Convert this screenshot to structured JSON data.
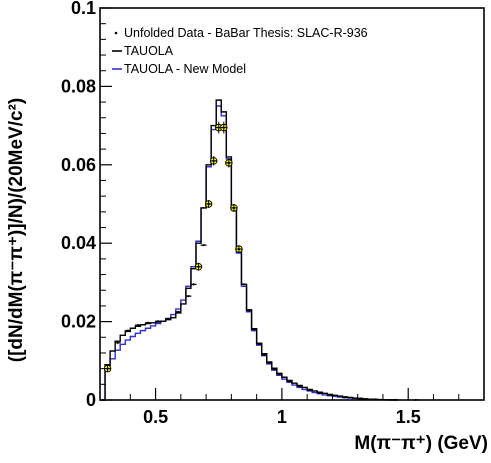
{
  "chart_data": {
    "type": "line",
    "xlabel": "M(π⁻π⁺) (GeV)",
    "ylabel": "([dN/dM(π⁻π⁺)]/N)/(20MeV/c²)",
    "xlim": [
      0.28,
      1.8
    ],
    "ylim": [
      0,
      0.1
    ],
    "x_ticks": [
      0.5,
      1,
      1.5
    ],
    "x_tick_labels": [
      "0.5",
      "1",
      "1.5"
    ],
    "y_ticks": [
      0,
      0.02,
      0.04,
      0.06,
      0.08,
      0.1
    ],
    "y_tick_labels": [
      "0",
      "0.02",
      "0.04",
      "0.06",
      "0.08",
      "0.1"
    ],
    "grid": false,
    "legend": "top-left",
    "legend_entries": [
      "Unfolded Data - BaBar Thesis: SLAC-R-936",
      "TAUOLA",
      "TAUOLA - New Model"
    ],
    "bin_width": 0.02,
    "series": [
      {
        "name": "TAUOLA",
        "color": "#000000",
        "style": "histogram",
        "bins": [
          [
            0.28,
            0.0
          ],
          [
            0.3,
            0.009
          ],
          [
            0.32,
            0.0125
          ],
          [
            0.34,
            0.015
          ],
          [
            0.36,
            0.0165
          ],
          [
            0.38,
            0.0175
          ],
          [
            0.4,
            0.0183
          ],
          [
            0.42,
            0.0188
          ],
          [
            0.44,
            0.0192
          ],
          [
            0.46,
            0.0195
          ],
          [
            0.48,
            0.0197
          ],
          [
            0.5,
            0.0199
          ],
          [
            0.52,
            0.0201
          ],
          [
            0.54,
            0.0205
          ],
          [
            0.56,
            0.021
          ],
          [
            0.58,
            0.0222
          ],
          [
            0.6,
            0.0245
          ],
          [
            0.62,
            0.0285
          ],
          [
            0.64,
            0.0335
          ],
          [
            0.66,
            0.04
          ],
          [
            0.68,
            0.049
          ],
          [
            0.7,
            0.06
          ],
          [
            0.72,
            0.07
          ],
          [
            0.74,
            0.0765
          ],
          [
            0.76,
            0.0735
          ],
          [
            0.78,
            0.062
          ],
          [
            0.8,
            0.049
          ],
          [
            0.82,
            0.038
          ],
          [
            0.84,
            0.0295
          ],
          [
            0.86,
            0.023
          ],
          [
            0.88,
            0.0182
          ],
          [
            0.9,
            0.0145
          ],
          [
            0.92,
            0.0118
          ],
          [
            0.94,
            0.0097
          ],
          [
            0.96,
            0.0081
          ],
          [
            0.98,
            0.0068
          ],
          [
            1.0,
            0.0058
          ],
          [
            1.02,
            0.005
          ],
          [
            1.04,
            0.0043
          ],
          [
            1.06,
            0.0037
          ],
          [
            1.08,
            0.0032
          ],
          [
            1.1,
            0.0027
          ],
          [
            1.12,
            0.0023
          ],
          [
            1.14,
            0.002
          ],
          [
            1.16,
            0.0017
          ],
          [
            1.18,
            0.0014
          ],
          [
            1.2,
            0.0012
          ],
          [
            1.22,
            0.001
          ],
          [
            1.24,
            0.0008
          ],
          [
            1.26,
            0.00065
          ],
          [
            1.28,
            0.0005
          ],
          [
            1.3,
            0.0004
          ],
          [
            1.32,
            0.0003
          ],
          [
            1.34,
            0.00022
          ],
          [
            1.36,
            0.00015
          ],
          [
            1.38,
            0.0001
          ],
          [
            1.4,
            6e-05
          ],
          [
            1.42,
            3e-05
          ],
          [
            1.44,
            0.0
          ]
        ]
      },
      {
        "name": "TAUOLA - New Model",
        "color": "#3030d0",
        "style": "histogram",
        "bins": [
          [
            0.28,
            0.0
          ],
          [
            0.3,
            0.0075
          ],
          [
            0.32,
            0.0105
          ],
          [
            0.34,
            0.0127
          ],
          [
            0.36,
            0.0142
          ],
          [
            0.38,
            0.0153
          ],
          [
            0.4,
            0.0162
          ],
          [
            0.42,
            0.017
          ],
          [
            0.44,
            0.0177
          ],
          [
            0.46,
            0.0183
          ],
          [
            0.48,
            0.0189
          ],
          [
            0.5,
            0.0195
          ],
          [
            0.52,
            0.0201
          ],
          [
            0.54,
            0.0208
          ],
          [
            0.56,
            0.0218
          ],
          [
            0.58,
            0.0232
          ],
          [
            0.6,
            0.0255
          ],
          [
            0.62,
            0.029
          ],
          [
            0.64,
            0.034
          ],
          [
            0.66,
            0.0405
          ],
          [
            0.68,
            0.049
          ],
          [
            0.7,
            0.0595
          ],
          [
            0.72,
            0.069
          ],
          [
            0.74,
            0.075
          ],
          [
            0.76,
            0.0725
          ],
          [
            0.78,
            0.0615
          ],
          [
            0.8,
            0.0485
          ],
          [
            0.82,
            0.0375
          ],
          [
            0.84,
            0.029
          ],
          [
            0.86,
            0.0225
          ],
          [
            0.88,
            0.0177
          ],
          [
            0.9,
            0.014
          ],
          [
            0.92,
            0.0113
          ],
          [
            0.94,
            0.0092
          ],
          [
            0.96,
            0.0076
          ],
          [
            0.98,
            0.0063
          ],
          [
            1.0,
            0.0053
          ],
          [
            1.02,
            0.0045
          ],
          [
            1.04,
            0.0038
          ],
          [
            1.06,
            0.0032
          ],
          [
            1.08,
            0.0027
          ],
          [
            1.1,
            0.0023
          ],
          [
            1.12,
            0.0019
          ],
          [
            1.14,
            0.0016
          ],
          [
            1.16,
            0.0013
          ],
          [
            1.18,
            0.0011
          ],
          [
            1.2,
            0.0009
          ],
          [
            1.22,
            0.00075
          ],
          [
            1.24,
            0.0006
          ],
          [
            1.26,
            0.0005
          ],
          [
            1.28,
            0.0004
          ],
          [
            1.3,
            0.0003
          ],
          [
            1.32,
            0.00022
          ],
          [
            1.34,
            0.00015
          ],
          [
            1.36,
            0.0001
          ],
          [
            1.38,
            6e-05
          ],
          [
            1.4,
            3e-05
          ],
          [
            1.42,
            0.0
          ]
        ]
      },
      {
        "name": "Unfolded Data - BaBar Thesis: SLAC-R-936",
        "color": "#000000",
        "style": "points",
        "highlight_color": "#ffff00",
        "points": [
          {
            "x": 0.31,
            "y": 0.008,
            "err": 0.0008,
            "hl": true
          },
          {
            "x": 0.35,
            "y": 0.0146
          },
          {
            "x": 0.39,
            "y": 0.0177
          },
          {
            "x": 0.43,
            "y": 0.0191
          },
          {
            "x": 0.47,
            "y": 0.0197
          },
          {
            "x": 0.51,
            "y": 0.0201
          },
          {
            "x": 0.55,
            "y": 0.0207
          },
          {
            "x": 0.59,
            "y": 0.0225
          },
          {
            "x": 0.63,
            "y": 0.0265
          },
          {
            "x": 0.65,
            "y": 0.0295
          },
          {
            "x": 0.67,
            "y": 0.034,
            "err": 0.001,
            "hl": true
          },
          {
            "x": 0.69,
            "y": 0.0395
          },
          {
            "x": 0.71,
            "y": 0.05,
            "err": 0.001,
            "hl": true
          },
          {
            "x": 0.73,
            "y": 0.061,
            "err": 0.0012,
            "hl": true
          },
          {
            "x": 0.75,
            "y": 0.0695,
            "err": 0.0015,
            "hl": true
          },
          {
            "x": 0.77,
            "y": 0.0695,
            "err": 0.0015,
            "hl": true
          },
          {
            "x": 0.79,
            "y": 0.0605,
            "err": 0.0012,
            "hl": true
          },
          {
            "x": 0.81,
            "y": 0.049,
            "err": 0.001,
            "hl": true
          },
          {
            "x": 0.83,
            "y": 0.0385,
            "err": 0.001,
            "hl": true
          },
          {
            "x": 0.85,
            "y": 0.0295
          },
          {
            "x": 0.87,
            "y": 0.0228
          },
          {
            "x": 0.89,
            "y": 0.018
          },
          {
            "x": 0.91,
            "y": 0.0143
          },
          {
            "x": 0.93,
            "y": 0.0115
          },
          {
            "x": 0.95,
            "y": 0.0095
          },
          {
            "x": 0.97,
            "y": 0.0079
          },
          {
            "x": 0.99,
            "y": 0.0066
          },
          {
            "x": 1.03,
            "y": 0.0048
          },
          {
            "x": 1.07,
            "y": 0.0035
          },
          {
            "x": 1.11,
            "y": 0.0025
          },
          {
            "x": 1.15,
            "y": 0.0018
          },
          {
            "x": 1.19,
            "y": 0.0013
          },
          {
            "x": 1.25,
            "y": 0.0007
          },
          {
            "x": 1.31,
            "y": 0.0004
          },
          {
            "x": 1.37,
            "y": 0.00015
          },
          {
            "x": 1.45,
            "y": 5e-05
          },
          {
            "x": 1.53,
            "y": 2e-05
          }
        ]
      }
    ]
  }
}
